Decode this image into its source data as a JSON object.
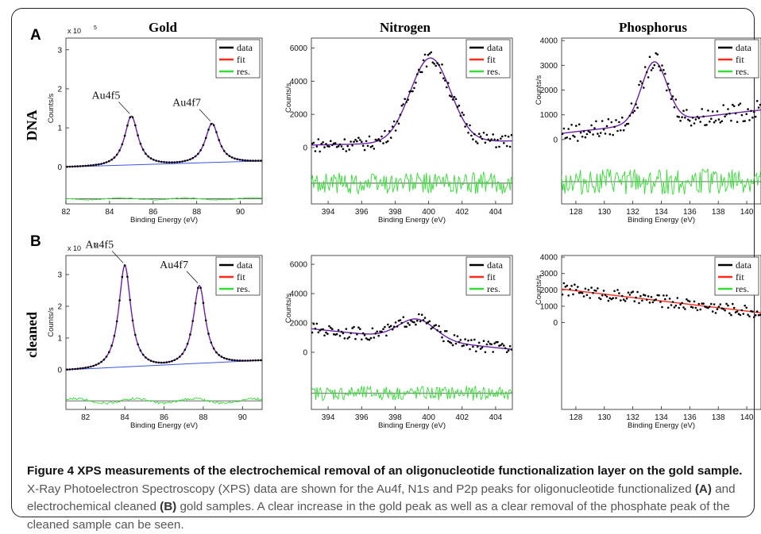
{
  "figure": {
    "row_letters": [
      "A",
      "B"
    ],
    "row_labels": [
      "DNA",
      "cleaned"
    ],
    "column_titles": [
      "Gold",
      "Nitrogen",
      "Phosphorus"
    ],
    "xlabel": "Binding Energy (eV)",
    "ylabel": "Counts/s",
    "legend_entries": [
      "data",
      "fit",
      "res."
    ],
    "colors": {
      "data": "#000000",
      "fit": "#ff2a1a",
      "res": "#33dd33",
      "fit_overlay": "#6a1fa8",
      "background": "#3a55e0",
      "baseline": "#555555"
    }
  },
  "chart_data": [
    {
      "type": "scatter",
      "row": "DNA",
      "column": "Gold",
      "xlabel": "Binding Energy (eV)",
      "ylabel": "Counts/s",
      "exponent_label": "x 10",
      "x_ticks": [
        82,
        84,
        86,
        88,
        90
      ],
      "y_ticks": [
        0,
        1,
        2,
        3
      ],
      "xlim": [
        82,
        91
      ],
      "ylim": [
        -0.95,
        3.3
      ],
      "peaks": [
        {
          "label": "Au4f5",
          "x": 85.0,
          "height": 1.25
        },
        {
          "label": "Au4f7",
          "x": 88.7,
          "height": 1.0
        }
      ],
      "background": [
        0.0,
        0.15
      ],
      "residual_offset": -0.82,
      "residual_scale": 0.04,
      "has_overlay": true
    },
    {
      "type": "scatter",
      "row": "DNA",
      "column": "Nitrogen",
      "xlabel": "Binding Energy (eV)",
      "ylabel": "Counts/s",
      "x_ticks": [
        394,
        396,
        398,
        400,
        402,
        404
      ],
      "y_ticks": [
        0,
        2000,
        4000,
        6000
      ],
      "xlim": [
        393,
        405
      ],
      "ylim": [
        -3400,
        6600
      ],
      "peaks": [
        {
          "x": 400.1,
          "height": 5100,
          "width": 1.2
        }
      ],
      "background": [
        150,
        400
      ],
      "residual_offset": -2150,
      "residual_scale": 600,
      "has_overlay": false
    },
    {
      "type": "scatter",
      "row": "DNA",
      "column": "Phosphorus",
      "xlabel": "Binding Energy (eV)",
      "ylabel": "Counts/s",
      "x_ticks": [
        128,
        130,
        132,
        134,
        136,
        138,
        140
      ],
      "y_ticks": [
        0,
        1000,
        2000,
        3000,
        4000
      ],
      "xlim": [
        127,
        141
      ],
      "ylim": [
        -2600,
        4100
      ],
      "peaks": [
        {
          "x": 133.5,
          "height": 2450,
          "width": 0.9
        }
      ],
      "background": [
        250,
        1200
      ],
      "residual_offset": -1700,
      "residual_scale": 480,
      "has_overlay": false
    },
    {
      "type": "scatter",
      "row": "cleaned",
      "column": "Gold",
      "xlabel": "Binding Energy (eV)",
      "ylabel": "Counts/s",
      "exponent_label": "x 10",
      "x_ticks": [
        82,
        84,
        86,
        88,
        90
      ],
      "y_ticks": [
        0,
        1,
        2,
        3
      ],
      "xlim": [
        81,
        91
      ],
      "ylim": [
        -1.25,
        3.6
      ],
      "peaks": [
        {
          "label": "Au4f5",
          "x": 84.0,
          "height": 3.2
        },
        {
          "label": "Au4f7",
          "x": 87.8,
          "height": 2.45
        }
      ],
      "background": [
        0.0,
        0.3
      ],
      "residual_offset": -0.98,
      "residual_scale": 0.12,
      "has_overlay": true
    },
    {
      "type": "scatter",
      "row": "cleaned",
      "column": "Nitrogen",
      "xlabel": "Binding Energy (eV)",
      "ylabel": "Counts/s",
      "x_ticks": [
        394,
        396,
        398,
        400,
        402,
        404
      ],
      "y_ticks": [
        0,
        2000,
        4000,
        6000
      ],
      "xlim": [
        393,
        405
      ],
      "ylim": [
        -3900,
        6600
      ],
      "peaks": [
        {
          "x": 399.3,
          "height": 1400,
          "width": 1.1
        }
      ],
      "background": [
        1600,
        200
      ],
      "residual_offset": -2800,
      "residual_scale": 450,
      "has_overlay": false
    },
    {
      "type": "scatter",
      "row": "cleaned",
      "column": "Phosphorus",
      "xlabel": "Binding Energy (eV)",
      "ylabel": "Counts/s",
      "x_ticks": [
        128,
        130,
        132,
        134,
        136,
        138,
        140
      ],
      "y_ticks": [
        0,
        1000,
        2000,
        3000,
        4000
      ],
      "xlim": [
        127,
        141
      ],
      "ylim": [
        -5300,
        4100
      ],
      "peaks": [],
      "background": [
        2050,
        600
      ],
      "residual_offset": null,
      "residual_scale": 0,
      "has_overlay": false
    }
  ],
  "caption": {
    "title": "Figure 4 XPS measurements of the electrochemical removal of an oligonucleotide functionalization layer on the gold sample.",
    "part1": " X-Ray Photoelectron Spectroscopy (XPS) data are shown for the Au4f, N1s and P2p peaks for oligonucleotide functionalized ",
    "bold1": "(A)",
    "part2": " and electrochemical cleaned ",
    "bold2": "(B)",
    "part3": " gold samples. A clear increase in the gold peak as well as a clear removal of the phosphate peak of the cleaned sample can be seen."
  }
}
